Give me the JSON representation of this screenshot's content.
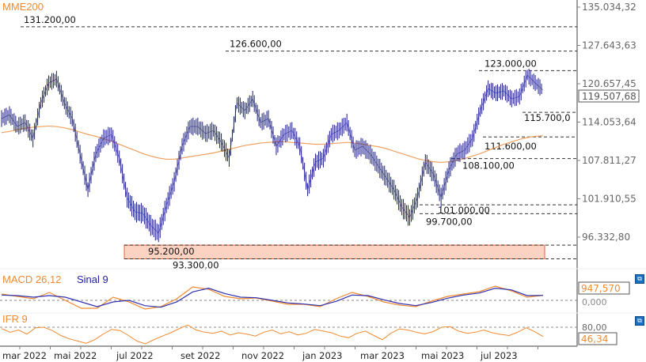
{
  "chart_data": [
    {
      "type": "line",
      "title": "MME200",
      "x_unit": "months (evenly spaced samples, mar 2022 – ago 2023)",
      "price_series": [
        114650,
        115300,
        113320,
        113980,
        111360,
        117300,
        120800,
        121500,
        117300,
        114650,
        108810,
        103290,
        108810,
        111360,
        112010,
        108180,
        102090,
        99970,
        99740,
        98010,
        96890,
        100910,
        104490,
        110080,
        113320,
        113320,
        112140,
        112670,
        110720,
        108180,
        117300,
        115980,
        118000,
        113980,
        114650,
        110080,
        112010,
        112670,
        110080,
        103290,
        107550,
        108180,
        112010,
        112670,
        113980,
        109440,
        110080,
        108810,
        106930,
        105100,
        103290,
        100680,
        99160,
        102090,
        107550,
        105710,
        102090,
        106320,
        108810,
        109440,
        111360,
        115980,
        119800,
        119000,
        119400,
        118000,
        118440,
        122210,
        120800,
        119507.68
      ],
      "mme200_series": [
        112300,
        112500,
        112800,
        113000,
        113200,
        113300,
        113400,
        113300,
        113100,
        112800,
        112400,
        112000,
        111700,
        111300,
        110900,
        110400,
        109900,
        109400,
        108900,
        108500,
        108200,
        108000,
        108000,
        108200,
        108400,
        108600,
        108800,
        109000,
        109300,
        109600,
        109900,
        110200,
        110400,
        110600,
        110700,
        110800,
        110800,
        110700,
        110600,
        110500,
        110400,
        110400,
        110500,
        110600,
        110700,
        110600,
        110400,
        110200,
        110000,
        109700,
        109300,
        108900,
        108500,
        108100,
        107800,
        107600,
        107500,
        107600,
        107800,
        108100,
        108500,
        108900,
        109400,
        109900,
        110400,
        110800,
        111200,
        111500,
        111700,
        111800
      ],
      "levels": [
        {
          "value": 131200,
          "label": "131.200,00"
        },
        {
          "value": 126600,
          "label": "126.600,00"
        },
        {
          "value": 123000,
          "label": "123.000,00"
        },
        {
          "value": 115700,
          "label": "115.700,0"
        },
        {
          "value": 111600,
          "label": "111.600,00"
        },
        {
          "value": 108100,
          "label": "108.100,00"
        },
        {
          "value": 101000,
          "label": "101.000,00"
        },
        {
          "value": 99700,
          "label": "99.700,00"
        },
        {
          "value": 95200,
          "label": "95.200,00"
        },
        {
          "value": 93300,
          "label": "93.300,00"
        }
      ],
      "zone": {
        "from": 93300,
        "to": 95200
      },
      "y_ticks": [
        "135.034,32",
        "127.643,63",
        "120.657,45",
        "114.053,64",
        "107.811,27",
        "101.910,55",
        "96.332,80"
      ],
      "y_tick_values": [
        135034.32,
        127643.63,
        120657.45,
        114053.64,
        107811.27,
        101910.55,
        96332.8
      ],
      "last_value_label": "119.507,68",
      "ylim": [
        92500,
        135034.32
      ],
      "scale": "log"
    },
    {
      "type": "line",
      "title": "MACD 26,12",
      "signal_title": "Sinal 9",
      "macd": [
        1200,
        750,
        300,
        1500,
        0,
        -1500,
        -1500,
        600,
        -300,
        -1650,
        -1200,
        300,
        2550,
        2100,
        750,
        300,
        450,
        -150,
        -750,
        -750,
        -1200,
        300,
        1500,
        750,
        -300,
        -900,
        -1200,
        -150,
        750,
        1200,
        1650,
        2700,
        1800,
        600,
        947.57
      ],
      "signal": [
        1000,
        900,
        600,
        900,
        600,
        -300,
        -1200,
        -300,
        0,
        -1000,
        -1300,
        -300,
        1600,
        2300,
        1300,
        600,
        500,
        0,
        -500,
        -700,
        -1000,
        -200,
        1000,
        900,
        100,
        -600,
        -1000,
        -400,
        400,
        1000,
        1400,
        2300,
        2000,
        900,
        950
      ],
      "zero_label": "0,000",
      "last_value_label": "947,570",
      "ylim": [
        -2500,
        3500
      ]
    },
    {
      "type": "line",
      "title": "IFR 9",
      "values": [
        75,
        62,
        70,
        55,
        78,
        80,
        68,
        50,
        38,
        30,
        22,
        35,
        55,
        72,
        68,
        50,
        30,
        20,
        35,
        48,
        60,
        75,
        88,
        70,
        62,
        58,
        66,
        52,
        60,
        55,
        48,
        62,
        70,
        56,
        64,
        52,
        58,
        72,
        66,
        60,
        48,
        42,
        58,
        66,
        50,
        35,
        58,
        74,
        70,
        62,
        56,
        64,
        80,
        82,
        66,
        58,
        62,
        70,
        60,
        54,
        50,
        62,
        78,
        64,
        46.34
      ],
      "reference_level": 80,
      "reference_label": "80,00",
      "last_value_label": "46,34",
      "ylim": [
        10,
        100
      ]
    }
  ],
  "x_axis": {
    "labels": [
      "mar 2022",
      "mai 2022",
      "jul 2022",
      "set 2022",
      "nov 2022",
      "jan 2023",
      "mar 2023",
      "mai 2023",
      "jul 2023"
    ]
  },
  "colors": {
    "price": "#1c1c8c",
    "mme": "#f0a060",
    "macd": "#f08a30",
    "signal": "#3030b0",
    "zone_fill": "#fcd3c3",
    "zone_border": "#e0603a",
    "axis": "#808080"
  },
  "icons": {
    "panel_toggle": "expand-icon"
  }
}
